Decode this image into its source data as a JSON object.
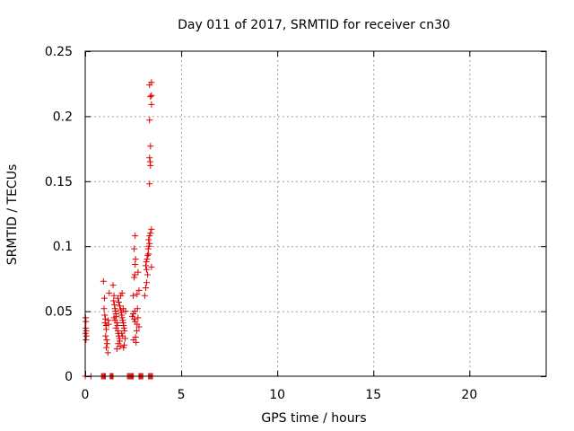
{
  "chart_data": {
    "type": "scatter",
    "title": "Day 011 of 2017, SRMTID for receiver cn30",
    "xlabel": "GPS time / hours",
    "ylabel": "SRMTID / TECUs",
    "xlim": [
      0,
      24
    ],
    "ylim": [
      0,
      0.25
    ],
    "x_ticks": [
      0,
      5,
      10,
      15,
      20
    ],
    "y_ticks": [
      0,
      0.05,
      0.1,
      0.15,
      0.2,
      0.25
    ],
    "x_tick_labels": [
      "0",
      "5",
      "10",
      "15",
      "20"
    ],
    "y_tick_labels": [
      "0",
      "0.05",
      "0.1",
      "0.15",
      "0.2",
      "0.25"
    ],
    "grid": true,
    "marker": "+",
    "series": [
      {
        "name": "SRMTID",
        "color": "#e00000",
        "points": [
          [
            0.0,
            0.0
          ],
          [
            0.3,
            0.0
          ],
          [
            0.85,
            0.0
          ],
          [
            0.9,
            0.0
          ],
          [
            0.95,
            0.0
          ],
          [
            1.0,
            0.0
          ],
          [
            1.05,
            0.0
          ],
          [
            1.3,
            0.0
          ],
          [
            1.35,
            0.0
          ],
          [
            1.4,
            0.0
          ],
          [
            1.45,
            0.0
          ],
          [
            2.2,
            0.0
          ],
          [
            2.25,
            0.0
          ],
          [
            2.3,
            0.0
          ],
          [
            2.35,
            0.0
          ],
          [
            2.4,
            0.0
          ],
          [
            2.45,
            0.0
          ],
          [
            2.5,
            0.0
          ],
          [
            2.8,
            0.0
          ],
          [
            2.85,
            0.0
          ],
          [
            2.9,
            0.0
          ],
          [
            2.95,
            0.0
          ],
          [
            3.0,
            0.0
          ],
          [
            3.3,
            0.0
          ],
          [
            3.35,
            0.0
          ],
          [
            3.4,
            0.0
          ],
          [
            3.45,
            0.0
          ],
          [
            3.5,
            0.0
          ],
          [
            0.02,
            0.045
          ],
          [
            0.04,
            0.042
          ],
          [
            0.03,
            0.037
          ],
          [
            0.05,
            0.035
          ],
          [
            0.02,
            0.033
          ],
          [
            0.06,
            0.031
          ],
          [
            0.04,
            0.028
          ],
          [
            0.95,
            0.073
          ],
          [
            1.0,
            0.06
          ],
          [
            0.98,
            0.052
          ],
          [
            1.02,
            0.047
          ],
          [
            1.05,
            0.044
          ],
          [
            1.03,
            0.041
          ],
          [
            1.08,
            0.039
          ],
          [
            1.1,
            0.036
          ],
          [
            1.06,
            0.031
          ],
          [
            1.12,
            0.028
          ],
          [
            1.15,
            0.025
          ],
          [
            1.1,
            0.022
          ],
          [
            1.18,
            0.018
          ],
          [
            1.2,
            0.043
          ],
          [
            1.22,
            0.04
          ],
          [
            1.25,
            0.064
          ],
          [
            1.45,
            0.07
          ],
          [
            1.5,
            0.062
          ],
          [
            1.48,
            0.058
          ],
          [
            1.52,
            0.055
          ],
          [
            1.55,
            0.052
          ],
          [
            1.58,
            0.05
          ],
          [
            1.6,
            0.048
          ],
          [
            1.62,
            0.046
          ],
          [
            1.5,
            0.045
          ],
          [
            1.55,
            0.043
          ],
          [
            1.65,
            0.041
          ],
          [
            1.68,
            0.039
          ],
          [
            1.6,
            0.037
          ],
          [
            1.7,
            0.035
          ],
          [
            1.72,
            0.033
          ],
          [
            1.75,
            0.031
          ],
          [
            1.78,
            0.029
          ],
          [
            1.8,
            0.027
          ],
          [
            1.72,
            0.025
          ],
          [
            1.82,
            0.023
          ],
          [
            1.65,
            0.021
          ],
          [
            1.7,
            0.06
          ],
          [
            1.75,
            0.057
          ],
          [
            1.8,
            0.054
          ],
          [
            1.85,
            0.051
          ],
          [
            1.88,
            0.049
          ],
          [
            1.9,
            0.047
          ],
          [
            1.92,
            0.045
          ],
          [
            1.95,
            0.043
          ],
          [
            1.98,
            0.041
          ],
          [
            2.0,
            0.039
          ],
          [
            2.02,
            0.037
          ],
          [
            2.05,
            0.035
          ],
          [
            1.9,
            0.033
          ],
          [
            1.95,
            0.031
          ],
          [
            2.08,
            0.029
          ],
          [
            2.1,
            0.05
          ],
          [
            1.98,
            0.052
          ],
          [
            2.03,
            0.024
          ],
          [
            2.0,
            0.022
          ],
          [
            1.85,
            0.062
          ],
          [
            1.92,
            0.064
          ],
          [
            2.45,
            0.046
          ],
          [
            2.5,
            0.048
          ],
          [
            2.55,
            0.044
          ],
          [
            2.58,
            0.05
          ],
          [
            2.6,
            0.042
          ],
          [
            2.62,
            0.03
          ],
          [
            2.52,
            0.028
          ],
          [
            2.65,
            0.026
          ],
          [
            2.68,
            0.035
          ],
          [
            2.7,
            0.04
          ],
          [
            2.75,
            0.045
          ],
          [
            2.72,
            0.052
          ],
          [
            2.8,
            0.038
          ],
          [
            2.5,
            0.062
          ],
          [
            2.55,
            0.076
          ],
          [
            2.58,
            0.078
          ],
          [
            2.6,
            0.086
          ],
          [
            2.62,
            0.09
          ],
          [
            2.55,
            0.098
          ],
          [
            2.6,
            0.108
          ],
          [
            2.7,
            0.063
          ],
          [
            2.75,
            0.08
          ],
          [
            2.8,
            0.066
          ],
          [
            3.1,
            0.062
          ],
          [
            3.15,
            0.068
          ],
          [
            3.2,
            0.072
          ],
          [
            3.25,
            0.078
          ],
          [
            3.2,
            0.082
          ],
          [
            3.15,
            0.085
          ],
          [
            3.18,
            0.088
          ],
          [
            3.22,
            0.09
          ],
          [
            3.25,
            0.093
          ],
          [
            3.3,
            0.094
          ],
          [
            3.28,
            0.098
          ],
          [
            3.32,
            0.1
          ],
          [
            3.35,
            0.102
          ],
          [
            3.3,
            0.105
          ],
          [
            3.35,
            0.108
          ],
          [
            3.4,
            0.11
          ],
          [
            3.45,
            0.113
          ],
          [
            3.45,
            0.084
          ],
          [
            3.35,
            0.148
          ],
          [
            3.4,
            0.162
          ],
          [
            3.38,
            0.165
          ],
          [
            3.35,
            0.168
          ],
          [
            3.4,
            0.177
          ],
          [
            3.35,
            0.197
          ],
          [
            3.45,
            0.209
          ],
          [
            3.4,
            0.215
          ],
          [
            3.45,
            0.216
          ],
          [
            3.35,
            0.224
          ],
          [
            3.45,
            0.226
          ]
        ]
      }
    ]
  }
}
